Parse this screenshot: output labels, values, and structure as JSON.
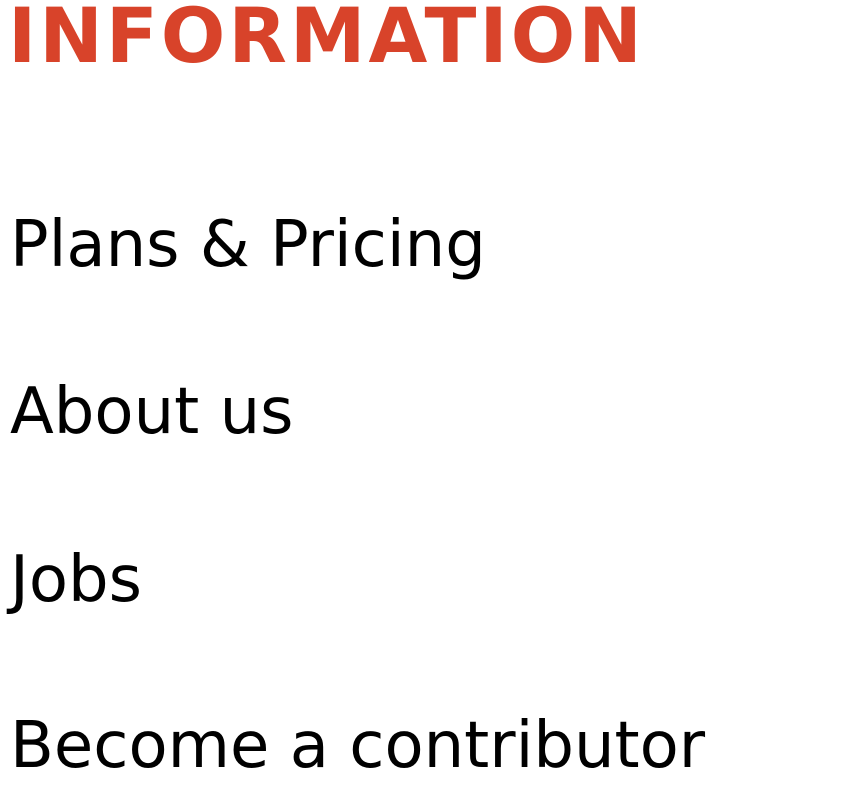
{
  "information": {
    "heading": "INFORMATION",
    "links": [
      {
        "label": "Plans & Pricing"
      },
      {
        "label": "About us"
      },
      {
        "label": "Jobs"
      },
      {
        "label": "Become a contributor"
      }
    ]
  },
  "colors": {
    "accent": "#d8432a",
    "text": "#000000",
    "background": "#ffffff"
  }
}
